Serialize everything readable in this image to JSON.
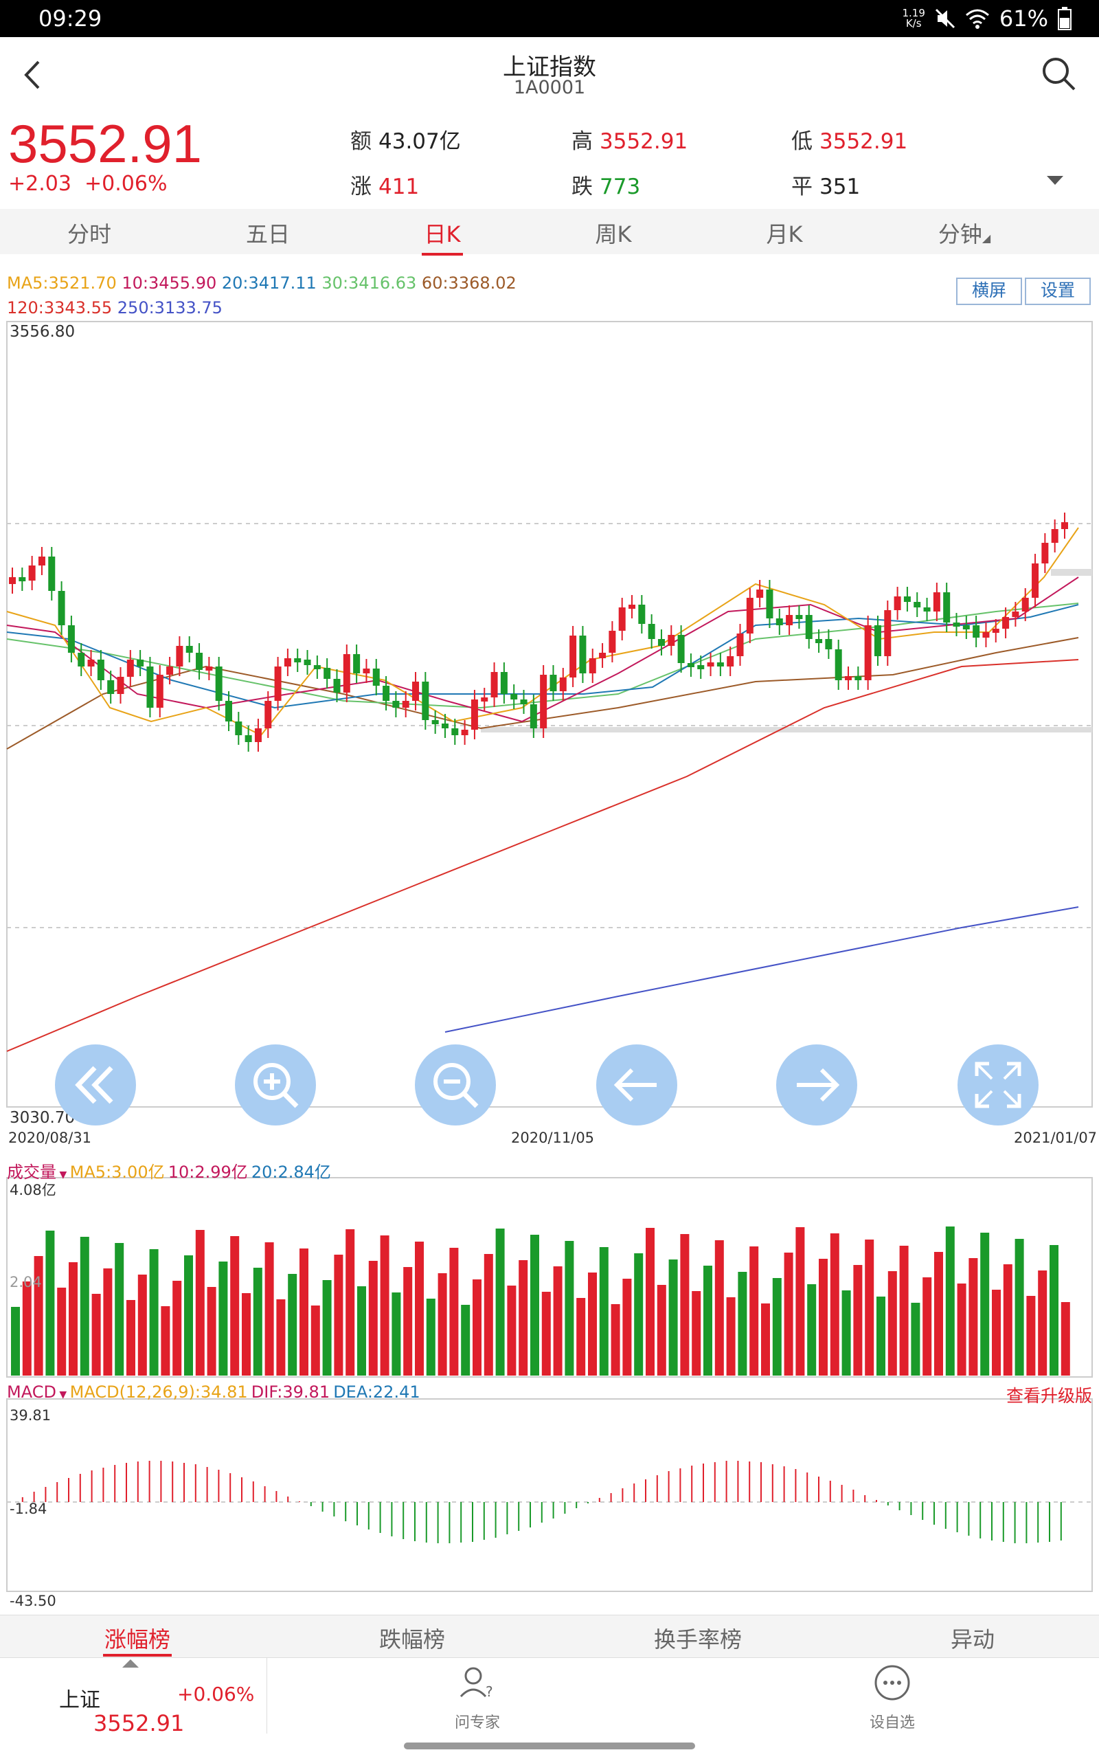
{
  "status_bar": {
    "time": "09:29",
    "speed_value": "1.19",
    "speed_unit": "K/s",
    "battery": "61%"
  },
  "header": {
    "title": "上证指数",
    "code": "1A0001"
  },
  "quote": {
    "price": "3552.91",
    "change": "+2.03",
    "change_pct": "+0.06%",
    "amount_label": "额",
    "amount": "43.07亿",
    "high_label": "高",
    "high": "3552.91",
    "low_label": "低",
    "low": "3552.91",
    "up_label": "涨",
    "up": "411",
    "down_label": "跌",
    "down": "773",
    "flat_label": "平",
    "flat": "351"
  },
  "kline_tabs": [
    {
      "label": "分时"
    },
    {
      "label": "五日"
    },
    {
      "label": "日K"
    },
    {
      "label": "周K"
    },
    {
      "label": "月K"
    },
    {
      "label": "分钟"
    }
  ],
  "active_tab": "日K",
  "ma_legend": {
    "ma5": "MA5:3521.70",
    "ma10": "10:3455.90",
    "ma20": "20:3417.11",
    "ma30": "30:3416.63",
    "ma60": "60:3368.02",
    "ma120": "120:3343.55",
    "ma250": "250:3133.75"
  },
  "buttons": {
    "landscape": "横屏",
    "settings": "设置",
    "upgrade": "查看升级版"
  },
  "colors": {
    "up": "#e0202c",
    "down": "#1a9a2a",
    "ma5": "#e8a317",
    "ma10": "#c2185b",
    "ma20": "#1f78b4",
    "ma30": "#66c26a",
    "ma60": "#9c5a28",
    "ma120": "#d9302a",
    "ma250": "#4452c6"
  },
  "chart_data": {
    "type": "candlestick",
    "x_start": "2020/08/31",
    "x_mid": "2020/11/05",
    "x_end": "2021/01/07",
    "y_max_label": "3556.80",
    "y_min_label": "3030.70",
    "ylim": [
      3030.7,
      3556.8
    ],
    "last_close": 3552.91,
    "volume": {
      "label": "成交量",
      "ma5": "MA5:3.00亿",
      "ma10": "10:2.99亿",
      "ma20": "20:2.84亿",
      "max_label": "4.08亿",
      "mid_label": "2.04"
    },
    "macd": {
      "label": "MACD",
      "params": "MACD(12,26,9):34.81",
      "dif": "DIF:39.81",
      "dea": "DEA:22.41",
      "max_label": "39.81",
      "mid_label": "-1.84",
      "min_label": "-43.50"
    }
  },
  "controls": [
    "fast-back",
    "zoom-in",
    "zoom-out",
    "left",
    "right",
    "fullscreen"
  ],
  "rank_tabs": [
    {
      "label": "涨幅榜"
    },
    {
      "label": "跌幅榜"
    },
    {
      "label": "换手率榜"
    },
    {
      "label": "异动"
    }
  ],
  "bottom": {
    "index_name": "上证",
    "index_pct": "+0.06%",
    "index_price": "3552.91",
    "ask_expert": "问专家",
    "add_watch": "设自选"
  }
}
